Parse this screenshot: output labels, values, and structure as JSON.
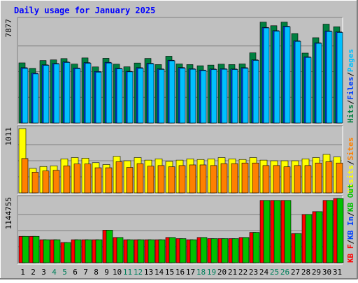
{
  "chart_data": {
    "type": "bar",
    "title": "Daily usage for January 2025",
    "categories": [
      "1",
      "2",
      "3",
      "4",
      "5",
      "6",
      "7",
      "8",
      "9",
      "10",
      "11",
      "12",
      "13",
      "14",
      "15",
      "16",
      "17",
      "18",
      "19",
      "20",
      "21",
      "22",
      "23",
      "24",
      "25",
      "26",
      "27",
      "28",
      "29",
      "30",
      "31"
    ],
    "weekend_days": [
      "4",
      "5",
      "11",
      "12",
      "18",
      "19",
      "25",
      "26"
    ],
    "panels": [
      {
        "id": "hits",
        "scale_label": "7877",
        "ymax": 7877,
        "legend": [
          {
            "text": "Hits",
            "color": "#008040"
          },
          {
            "text": "/",
            "color": "#000000"
          },
          {
            "text": "Files",
            "color": "#0040ff"
          },
          {
            "text": "/",
            "color": "#000000"
          },
          {
            "text": "Pages",
            "color": "#00c0ff"
          }
        ],
        "series": [
          {
            "name": "Hits",
            "color": "#008040",
            "values": [
              4610,
              4190,
              4790,
              4840,
              4940,
              4520,
              4990,
              4300,
              4960,
              4510,
              4310,
              4600,
              4950,
              4480,
              5120,
              4530,
              4480,
              4390,
              4440,
              4510,
              4480,
              4530,
              5380,
              7740,
              7460,
              7740,
              6860,
              5360,
              6540,
              7580,
              7380
            ]
          },
          {
            "name": "Files",
            "color": "#0040ff",
            "values": [
              4240,
              3820,
              4460,
              4560,
              4680,
              4220,
              4630,
              3950,
              4650,
              4190,
              3960,
              4240,
              4580,
              4150,
              4810,
              4250,
              4160,
              4060,
              4140,
              4160,
              4140,
              4240,
              4840,
              7330,
              7080,
              7420,
              6300,
              5070,
              6150,
              7060,
              6980
            ]
          },
          {
            "name": "Pages",
            "color": "#00c0ff",
            "values": [
              4180,
              3760,
              4420,
              4520,
              4640,
              4170,
              4580,
              3900,
              4600,
              4150,
              3920,
              4190,
              4540,
              4110,
              4770,
              4200,
              4120,
              4020,
              4100,
              4120,
              4100,
              4190,
              4800,
              7290,
              7040,
              7380,
              6260,
              5030,
              6110,
              7020,
              6940
            ]
          }
        ]
      },
      {
        "id": "visits",
        "scale_label": "1011",
        "ymax": 1011,
        "legend": [
          {
            "text": "Visits",
            "color": "#ffff00"
          },
          {
            "text": "/",
            "color": "#000000"
          },
          {
            "text": "Sites",
            "color": "#ff8000"
          }
        ],
        "series": [
          {
            "name": "Visits",
            "color": "#ffff00",
            "values": [
              1011,
              385,
              415,
              425,
              535,
              555,
              545,
              475,
              445,
              575,
              505,
              555,
              515,
              535,
              495,
              515,
              535,
              525,
              535,
              555,
              535,
              525,
              555,
              515,
              505,
              505,
              505,
              535,
              555,
              605,
              565
            ]
          },
          {
            "name": "Sites",
            "color": "#ff8000",
            "values": [
              540,
              325,
              345,
              355,
              425,
              455,
              455,
              395,
              395,
              490,
              400,
              460,
              420,
              430,
              410,
              430,
              440,
              440,
              430,
              460,
              460,
              470,
              470,
              430,
              430,
              410,
              430,
              430,
              470,
              490,
              470
            ]
          }
        ]
      },
      {
        "id": "kbytes",
        "scale_label": "1144755",
        "ymax": 1144755,
        "legend": [
          {
            "text": "KB F",
            "color": "#ff0000"
          },
          {
            "text": "/",
            "color": "#000000"
          },
          {
            "text": "KB In",
            "color": "#0040ff"
          },
          {
            "text": "/",
            "color": "#000000"
          },
          {
            "text": "KB Out",
            "color": "#00c000"
          }
        ],
        "series": [
          {
            "name": "KB F",
            "color": "#ff0000",
            "values": [
              470000,
              470000,
              410000,
              410000,
              360000,
              410000,
              410000,
              410000,
              580000,
              450000,
              410000,
              410000,
              410000,
              410000,
              450000,
              430000,
              410000,
              450000,
              430000,
              430000,
              430000,
              450000,
              540000,
              1110000,
              1110000,
              1110000,
              520000,
              860000,
              910000,
              1110000,
              1144755
            ]
          },
          {
            "name": "KB Out",
            "color": "#00c000",
            "values": [
              470000,
              470000,
              410000,
              410000,
              360000,
              410000,
              410000,
              410000,
              580000,
              450000,
              410000,
              410000,
              410000,
              410000,
              450000,
              430000,
              410000,
              450000,
              430000,
              430000,
              430000,
              450000,
              540000,
              1110000,
              1110000,
              1110000,
              520000,
              860000,
              910000,
              1110000,
              1144755
            ]
          }
        ]
      }
    ]
  },
  "colors": {
    "background": "#c0c0c0",
    "plot_background": "#c0c0c0",
    "title": "#0000ff",
    "weekend_label": "#00805c",
    "weekday_label": "#000000",
    "grid": "#808080"
  }
}
